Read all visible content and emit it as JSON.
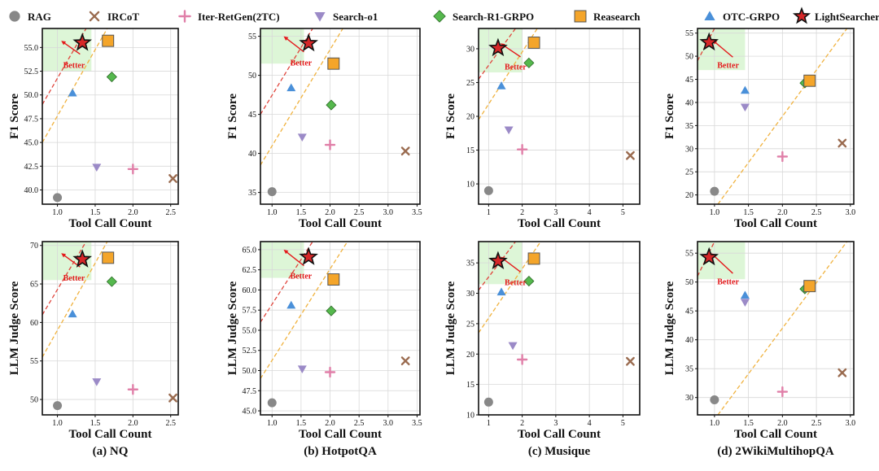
{
  "legend": [
    {
      "name": "RAG",
      "marker": "circle",
      "color": "#888888"
    },
    {
      "name": "IRCoT",
      "marker": "x",
      "color": "#9a6b4f"
    },
    {
      "name": "Iter-RetGen(2TC)",
      "marker": "plus",
      "color": "#e07fa8"
    },
    {
      "name": "Search-o1",
      "marker": "tri-down",
      "color": "#9b8ac7"
    },
    {
      "name": "Search-R1-GRPO",
      "marker": "diamond",
      "color": "#55b84d"
    },
    {
      "name": "Reasearch",
      "marker": "square",
      "color": "#f4a52a"
    },
    {
      "name": "OTC-GRPO",
      "marker": "tri-up",
      "color": "#4a90d9"
    },
    {
      "name": "LightSearcher",
      "marker": "star",
      "color": "#d62728"
    }
  ],
  "annotation": "Better",
  "chart_data": [
    {
      "type": "scatter",
      "caption": "(a) NQ",
      "xlabel": "Tool Call Count",
      "ylabel": "F1 Score",
      "xlim": [
        0.8,
        2.6
      ],
      "ylim": [
        38.5,
        57
      ],
      "xticks": [
        "1.0",
        "1.5",
        "2.0",
        "2.5"
      ],
      "xtick_values": [
        1.0,
        1.5,
        2.0,
        2.5
      ],
      "yticks": [
        "40.0",
        "42.5",
        "45.0",
        "47.5",
        "50.0",
        "52.5",
        "55.0"
      ],
      "ytick_values": [
        40.0,
        42.5,
        45.0,
        47.5,
        50.0,
        52.5,
        55.0
      ],
      "green_zone": {
        "x": [
          0.8,
          1.45
        ],
        "y": [
          52.5,
          57
        ]
      },
      "red_line": [
        [
          0.8,
          49
        ],
        [
          1.38,
          57
        ]
      ],
      "orange_line": [
        [
          0.8,
          45
        ],
        [
          1.66,
          57
        ]
      ],
      "arrow": {
        "from": [
          1.3,
          54.3
        ],
        "to": [
          1.05,
          55.7
        ],
        "label_at": [
          1.22,
          53.7
        ]
      },
      "points": [
        {
          "series": "RAG",
          "x": 1.0,
          "y": 39.2
        },
        {
          "series": "IRCoT",
          "x": 2.53,
          "y": 41.2
        },
        {
          "series": "Iter-RetGen(2TC)",
          "x": 2.0,
          "y": 42.2
        },
        {
          "series": "Search-o1",
          "x": 1.52,
          "y": 42.4
        },
        {
          "series": "Search-R1-GRPO",
          "x": 1.72,
          "y": 51.9
        },
        {
          "series": "Reasearch",
          "x": 1.67,
          "y": 55.7
        },
        {
          "series": "OTC-GRPO",
          "x": 1.2,
          "y": 50.2
        },
        {
          "series": "LightSearcher",
          "x": 1.33,
          "y": 55.5
        }
      ]
    },
    {
      "type": "scatter",
      "caption": "(b) HotpotQA",
      "xlabel": "Tool Call Count",
      "ylabel": "F1 Score",
      "xlim": [
        0.8,
        3.55
      ],
      "ylim": [
        33.5,
        56
      ],
      "xticks": [
        "1.0",
        "1.5",
        "2.0",
        "2.5",
        "3.0",
        "3.5"
      ],
      "xtick_values": [
        1.0,
        1.5,
        2.0,
        2.5,
        3.0,
        3.5
      ],
      "yticks": [
        "35",
        "40",
        "45",
        "50",
        "55"
      ],
      "ytick_values": [
        35,
        40,
        45,
        50,
        55
      ],
      "green_zone": {
        "x": [
          0.8,
          1.55
        ],
        "y": [
          51.5,
          56
        ]
      },
      "red_line": [
        [
          0.8,
          45
        ],
        [
          1.7,
          56
        ]
      ],
      "orange_line": [
        [
          0.8,
          38.5
        ],
        [
          2.22,
          56
        ]
      ],
      "arrow": {
        "from": [
          1.55,
          53.0
        ],
        "to": [
          1.2,
          55.0
        ],
        "label_at": [
          1.5,
          52.3
        ]
      },
      "points": [
        {
          "series": "RAG",
          "x": 1.0,
          "y": 35.1
        },
        {
          "series": "IRCoT",
          "x": 3.3,
          "y": 40.3
        },
        {
          "series": "Iter-RetGen(2TC)",
          "x": 2.0,
          "y": 41.1
        },
        {
          "series": "Search-o1",
          "x": 1.52,
          "y": 42.1
        },
        {
          "series": "Search-R1-GRPO",
          "x": 2.02,
          "y": 46.2
        },
        {
          "series": "Reasearch",
          "x": 2.06,
          "y": 51.5
        },
        {
          "series": "OTC-GRPO",
          "x": 1.33,
          "y": 48.4
        },
        {
          "series": "LightSearcher",
          "x": 1.63,
          "y": 54.1
        }
      ]
    },
    {
      "type": "scatter",
      "caption": "(c) Musique",
      "xlabel": "Tool Call Count",
      "ylabel": "F1 Score",
      "xlim": [
        0.7,
        5.5
      ],
      "ylim": [
        7,
        33
      ],
      "xticks": [
        "1",
        "2",
        "3",
        "4",
        "5"
      ],
      "xtick_values": [
        1,
        2,
        3,
        4,
        5
      ],
      "yticks": [
        "10",
        "15",
        "20",
        "25",
        "30"
      ],
      "ytick_values": [
        10,
        15,
        20,
        25,
        30
      ],
      "green_zone": {
        "x": [
          0.7,
          2.0
        ],
        "y": [
          26.5,
          33
        ]
      },
      "red_line": [
        [
          0.7,
          25.5
        ],
        [
          1.8,
          33
        ]
      ],
      "orange_line": [
        [
          0.7,
          19.5
        ],
        [
          2.45,
          33
        ]
      ],
      "arrow": {
        "from": [
          1.95,
          28.8
        ],
        "to": [
          1.35,
          30.8
        ],
        "label_at": [
          1.8,
          28.1
        ]
      },
      "points": [
        {
          "series": "RAG",
          "x": 1.0,
          "y": 9.0
        },
        {
          "series": "IRCoT",
          "x": 5.22,
          "y": 14.2
        },
        {
          "series": "Iter-RetGen(2TC)",
          "x": 2.0,
          "y": 15.1
        },
        {
          "series": "Search-o1",
          "x": 1.6,
          "y": 18.0
        },
        {
          "series": "Search-R1-GRPO",
          "x": 2.2,
          "y": 27.9
        },
        {
          "series": "Reasearch",
          "x": 2.35,
          "y": 30.9
        },
        {
          "series": "OTC-GRPO",
          "x": 1.38,
          "y": 24.5
        },
        {
          "series": "LightSearcher",
          "x": 1.28,
          "y": 30.1
        }
      ]
    },
    {
      "type": "scatter",
      "caption": "(d) 2WikiMultihopQA",
      "xlabel": "Tool Call Count",
      "ylabel": "F1 Score",
      "xlim": [
        0.75,
        3.05
      ],
      "ylim": [
        18,
        56
      ],
      "xticks": [
        "1.0",
        "1.5",
        "2.0",
        "2.5",
        "3.0"
      ],
      "xtick_values": [
        1.0,
        1.5,
        2.0,
        2.5,
        3.0
      ],
      "yticks": [
        "20",
        "25",
        "30",
        "35",
        "40",
        "45",
        "50",
        "55"
      ],
      "ytick_values": [
        20,
        25,
        30,
        35,
        40,
        45,
        50,
        55
      ],
      "green_zone": {
        "x": [
          0.75,
          1.45
        ],
        "y": [
          47,
          56
        ]
      },
      "red_line": [
        [
          0.75,
          49
        ],
        [
          1.0,
          56
        ]
      ],
      "orange_line": [
        [
          1.05,
          18
        ],
        [
          2.95,
          56
        ]
      ],
      "arrow": {
        "from": [
          1.27,
          49.8
        ],
        "to": [
          0.97,
          53.5
        ],
        "label_at": [
          1.2,
          49.2
        ]
      },
      "points": [
        {
          "series": "RAG",
          "x": 1.0,
          "y": 20.8
        },
        {
          "series": "IRCoT",
          "x": 2.88,
          "y": 31.2
        },
        {
          "series": "Iter-RetGen(2TC)",
          "x": 2.0,
          "y": 28.3
        },
        {
          "series": "Search-o1",
          "x": 1.45,
          "y": 39.0
        },
        {
          "series": "Search-R1-GRPO",
          "x": 2.33,
          "y": 44.2
        },
        {
          "series": "Reasearch",
          "x": 2.4,
          "y": 44.7
        },
        {
          "series": "OTC-GRPO",
          "x": 1.45,
          "y": 42.6
        },
        {
          "series": "LightSearcher",
          "x": 0.92,
          "y": 53.0
        }
      ]
    },
    {
      "type": "scatter",
      "caption": "",
      "xlabel": "Tool Call Count",
      "ylabel": "LLM Judge Score",
      "xlim": [
        0.8,
        2.6
      ],
      "ylim": [
        48,
        70.5
      ],
      "xticks": [
        "1.0",
        "1.5",
        "2.0",
        "2.5"
      ],
      "xtick_values": [
        1.0,
        1.5,
        2.0,
        2.5
      ],
      "yticks": [
        "50",
        "55",
        "60",
        "65",
        "70"
      ],
      "ytick_values": [
        50,
        55,
        60,
        65,
        70
      ],
      "green_zone": {
        "x": [
          0.8,
          1.45
        ],
        "y": [
          65.5,
          70.5
        ]
      },
      "red_line": [
        [
          0.8,
          61
        ],
        [
          1.38,
          70.5
        ]
      ],
      "orange_line": [
        [
          0.8,
          55.5
        ],
        [
          1.66,
          70.5
        ]
      ],
      "arrow": {
        "from": [
          1.3,
          67.2
        ],
        "to": [
          1.05,
          69.0
        ],
        "label_at": [
          1.22,
          66.5
        ]
      },
      "points": [
        {
          "series": "RAG",
          "x": 1.0,
          "y": 49.2
        },
        {
          "series": "IRCoT",
          "x": 2.53,
          "y": 50.2
        },
        {
          "series": "Iter-RetGen(2TC)",
          "x": 2.0,
          "y": 51.3
        },
        {
          "series": "Search-o1",
          "x": 1.52,
          "y": 52.3
        },
        {
          "series": "Search-R1-GRPO",
          "x": 1.72,
          "y": 65.3
        },
        {
          "series": "Reasearch",
          "x": 1.67,
          "y": 68.4
        },
        {
          "series": "OTC-GRPO",
          "x": 1.2,
          "y": 61.1
        },
        {
          "series": "LightSearcher",
          "x": 1.33,
          "y": 68.2
        }
      ]
    },
    {
      "type": "scatter",
      "caption": "",
      "xlabel": "Tool Call Count",
      "ylabel": "LLM Judge Score",
      "xlim": [
        0.8,
        3.55
      ],
      "ylim": [
        44.5,
        66
      ],
      "xticks": [
        "1.0",
        "1.5",
        "2.0",
        "2.5",
        "3.0",
        "3.5"
      ],
      "xtick_values": [
        1.0,
        1.5,
        2.0,
        2.5,
        3.0,
        3.5
      ],
      "yticks": [
        "45.0",
        "47.5",
        "50.0",
        "52.5",
        "55.0",
        "57.5",
        "60.0",
        "62.5",
        "65.0"
      ],
      "ytick_values": [
        45.0,
        47.5,
        50.0,
        52.5,
        55.0,
        57.5,
        60.0,
        62.5,
        65.0
      ],
      "green_zone": {
        "x": [
          0.8,
          1.55
        ],
        "y": [
          61.5,
          66
        ]
      },
      "red_line": [
        [
          0.8,
          56
        ],
        [
          1.7,
          66
        ]
      ],
      "orange_line": [
        [
          0.8,
          49
        ],
        [
          2.3,
          66
        ]
      ],
      "arrow": {
        "from": [
          1.55,
          63.0
        ],
        "to": [
          1.2,
          65.0
        ],
        "label_at": [
          1.5,
          62.4
        ]
      },
      "points": [
        {
          "series": "RAG",
          "x": 1.0,
          "y": 46.0
        },
        {
          "series": "IRCoT",
          "x": 3.3,
          "y": 51.2
        },
        {
          "series": "Iter-RetGen(2TC)",
          "x": 2.0,
          "y": 49.8
        },
        {
          "series": "Search-o1",
          "x": 1.52,
          "y": 50.2
        },
        {
          "series": "Search-R1-GRPO",
          "x": 2.02,
          "y": 57.4
        },
        {
          "series": "Reasearch",
          "x": 2.06,
          "y": 61.3
        },
        {
          "series": "OTC-GRPO",
          "x": 1.33,
          "y": 58.1
        },
        {
          "series": "LightSearcher",
          "x": 1.63,
          "y": 64.1
        }
      ]
    },
    {
      "type": "scatter",
      "caption": "",
      "xlabel": "Tool Call Count",
      "ylabel": "LLM Judge Score",
      "xlim": [
        0.7,
        5.5
      ],
      "ylim": [
        10,
        38.5
      ],
      "xticks": [
        "1",
        "2",
        "3",
        "4",
        "5"
      ],
      "xtick_values": [
        1,
        2,
        3,
        4,
        5
      ],
      "yticks": [
        "10",
        "15",
        "20",
        "25",
        "30",
        "35"
      ],
      "ytick_values": [
        10,
        15,
        20,
        25,
        30,
        35
      ],
      "green_zone": {
        "x": [
          0.7,
          2.0
        ],
        "y": [
          31.5,
          38.5
        ]
      },
      "red_line": [
        [
          0.7,
          30.5
        ],
        [
          1.8,
          38.5
        ]
      ],
      "orange_line": [
        [
          0.7,
          23.5
        ],
        [
          2.55,
          38.5
        ]
      ],
      "arrow": {
        "from": [
          1.95,
          33.5
        ],
        "to": [
          1.35,
          36.0
        ],
        "label_at": [
          1.8,
          32.7
        ]
      },
      "points": [
        {
          "series": "RAG",
          "x": 1.0,
          "y": 12.1
        },
        {
          "series": "IRCoT",
          "x": 5.22,
          "y": 18.8
        },
        {
          "series": "Iter-RetGen(2TC)",
          "x": 2.0,
          "y": 19.1
        },
        {
          "series": "Search-o1",
          "x": 1.72,
          "y": 21.4
        },
        {
          "series": "Search-R1-GRPO",
          "x": 2.2,
          "y": 32.0
        },
        {
          "series": "Reasearch",
          "x": 2.35,
          "y": 35.7
        },
        {
          "series": "OTC-GRPO",
          "x": 1.38,
          "y": 30.2
        },
        {
          "series": "LightSearcher",
          "x": 1.28,
          "y": 35.3
        }
      ]
    },
    {
      "type": "scatter",
      "caption": "",
      "xlabel": "Tool Call Count",
      "ylabel": "LLM Judge Score",
      "xlim": [
        0.75,
        3.05
      ],
      "ylim": [
        27,
        57
      ],
      "xticks": [
        "1.0",
        "1.5",
        "2.0",
        "2.5",
        "3.0"
      ],
      "xtick_values": [
        1.0,
        1.5,
        2.0,
        2.5,
        3.0
      ],
      "yticks": [
        "30",
        "35",
        "40",
        "45",
        "50",
        "55"
      ],
      "ytick_values": [
        30,
        35,
        40,
        45,
        50,
        55
      ],
      "green_zone": {
        "x": [
          0.75,
          1.45
        ],
        "y": [
          50.5,
          57
        ]
      },
      "red_line": [
        [
          0.75,
          51
        ],
        [
          1.0,
          57
        ]
      ],
      "orange_line": [
        [
          1.05,
          27
        ],
        [
          2.95,
          57
        ]
      ],
      "arrow": {
        "from": [
          1.27,
          51.5
        ],
        "to": [
          0.95,
          55.0
        ],
        "label_at": [
          1.2,
          51.0
        ]
      },
      "points": [
        {
          "series": "RAG",
          "x": 1.0,
          "y": 29.6
        },
        {
          "series": "IRCoT",
          "x": 2.88,
          "y": 34.3
        },
        {
          "series": "Iter-RetGen(2TC)",
          "x": 2.0,
          "y": 31.0
        },
        {
          "series": "Search-o1",
          "x": 1.45,
          "y": 46.5
        },
        {
          "series": "Search-R1-GRPO",
          "x": 2.33,
          "y": 48.8
        },
        {
          "series": "Reasearch",
          "x": 2.4,
          "y": 49.3
        },
        {
          "series": "OTC-GRPO",
          "x": 1.45,
          "y": 47.7
        },
        {
          "series": "LightSearcher",
          "x": 0.92,
          "y": 54.3
        }
      ]
    }
  ]
}
